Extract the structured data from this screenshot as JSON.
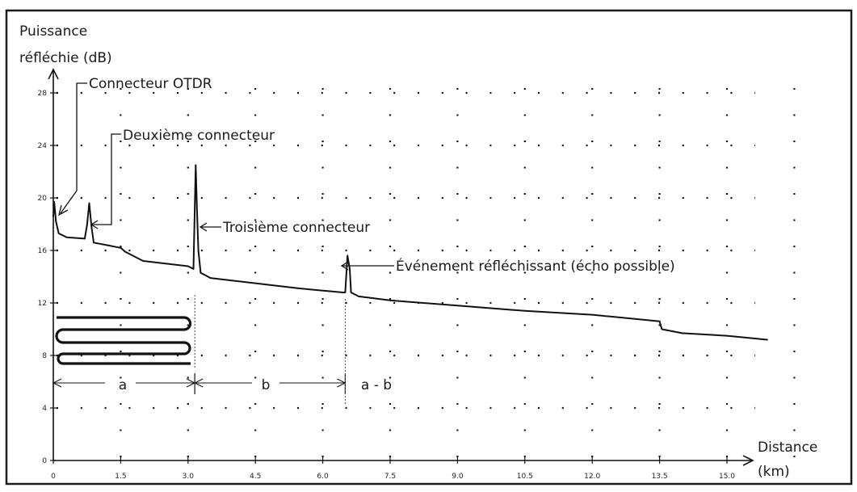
{
  "chart_data": {
    "type": "line",
    "ylabel_line1": "Puissance",
    "ylabel_line2": "réfléchie (dB)",
    "xlabel_line1": "Distance",
    "xlabel_line2": "(km)",
    "xlim": [
      0,
      16.5
    ],
    "ylim": [
      0,
      28
    ],
    "grid": "dotted",
    "xticks": [
      "0",
      "1.5",
      "3.0",
      "4.5",
      "6.0",
      "7.5",
      "9.0",
      "10.5",
      "12.0",
      "13.5",
      "15.0"
    ],
    "yticks": [
      "0",
      "4",
      "8",
      "12",
      "16",
      "20",
      "24",
      "28"
    ],
    "series": [
      {
        "points": [
          [
            0.0,
            18.6
          ],
          [
            0.02,
            19.7
          ],
          [
            0.06,
            18.2
          ],
          [
            0.12,
            17.3
          ],
          [
            0.3,
            17.0
          ],
          [
            0.7,
            16.9
          ],
          [
            0.75,
            17.9
          ],
          [
            0.8,
            19.6
          ],
          [
            0.85,
            17.8
          ],
          [
            0.9,
            16.6
          ],
          [
            1.2,
            16.4
          ],
          [
            1.5,
            16.2
          ],
          [
            1.6,
            15.9
          ],
          [
            2.0,
            15.2
          ],
          [
            2.5,
            15.0
          ],
          [
            3.0,
            14.8
          ],
          [
            3.12,
            14.6
          ],
          [
            3.17,
            22.5
          ],
          [
            3.2,
            19.0
          ],
          [
            3.23,
            16.0
          ],
          [
            3.28,
            14.3
          ],
          [
            3.5,
            13.9
          ],
          [
            4.5,
            13.5
          ],
          [
            5.5,
            13.1
          ],
          [
            6.45,
            12.8
          ],
          [
            6.5,
            12.8
          ],
          [
            6.55,
            15.6
          ],
          [
            6.6,
            14.6
          ],
          [
            6.63,
            12.8
          ],
          [
            6.8,
            12.5
          ],
          [
            7.5,
            12.2
          ],
          [
            9.0,
            11.8
          ],
          [
            10.5,
            11.4
          ],
          [
            12.0,
            11.1
          ],
          [
            13.5,
            10.6
          ],
          [
            13.55,
            10.0
          ],
          [
            14.0,
            9.7
          ],
          [
            15.0,
            9.5
          ],
          [
            15.9,
            9.2
          ]
        ]
      }
    ],
    "annotations": [
      {
        "text": "Connecteur OTDR",
        "x": 0.03,
        "y": 19.5
      },
      {
        "text": "Deuxième connecteur",
        "x": 0.8,
        "y": 18.1
      },
      {
        "text": "Troisième connecteur",
        "x": 3.25,
        "y": 17.8
      },
      {
        "text": "Événement réfléchissant (écho possible)",
        "x": 6.6,
        "y": 14.8
      }
    ],
    "segments": [
      {
        "label": "a",
        "from": 0,
        "to": 3.15
      },
      {
        "label": "b",
        "from": 3.15,
        "to": 6.5
      },
      {
        "label": "a - b",
        "from": 6.5
      }
    ]
  }
}
